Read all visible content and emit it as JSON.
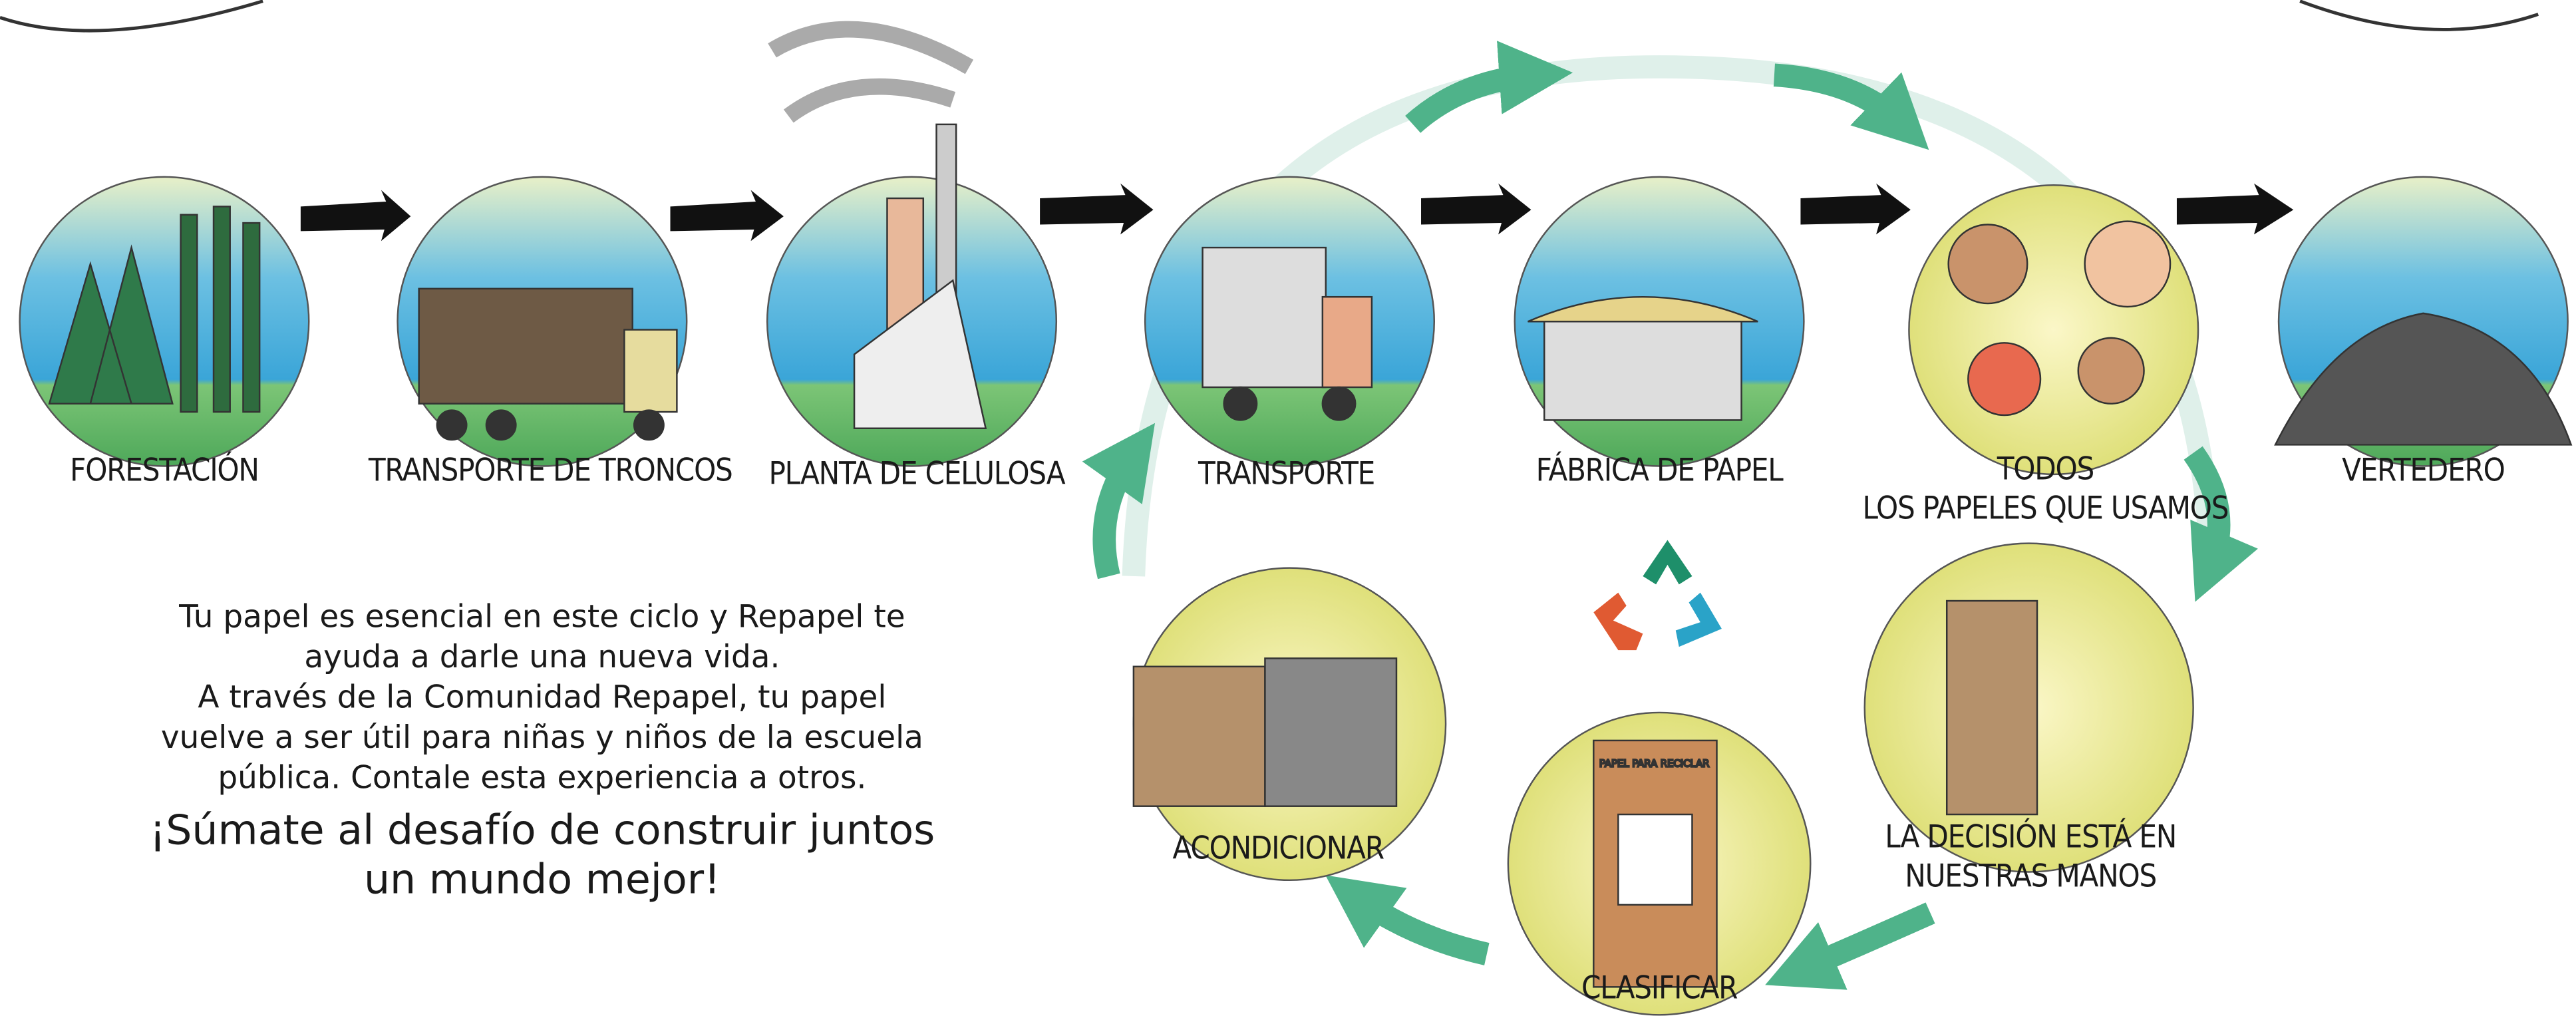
{
  "nodes": [
    {
      "lines": [
        "FORESTACIÓN"
      ]
    },
    {
      "lines": [
        "TRANSPORTE DE TRONCOS"
      ]
    },
    {
      "lines": [
        "PLANTA DE CELULOSA"
      ]
    },
    {
      "lines": [
        "TRANSPORTE"
      ]
    },
    {
      "lines": [
        "FÁBRICA DE PAPEL"
      ]
    },
    {
      "lines": [
        "TODOS",
        "LOS PAPELES QUE USAMOS"
      ]
    },
    {
      "lines": [
        "VERTEDERO"
      ]
    },
    {
      "lines": [
        "LA DECISIÓN ESTÁ EN",
        "NUESTRAS MANOS"
      ]
    },
    {
      "lines": [
        "CLASIFICAR"
      ]
    },
    {
      "lines": [
        "ACONDICIONAR"
      ]
    }
  ],
  "bin_label": "PAPEL PARA RECICLAR",
  "paragraph": {
    "lines": [
      "Tu papel es esencial en este ciclo y Repapel te",
      "ayuda a darle una nueva vida.",
      "A través de la Comunidad Repapel, tu papel",
      "vuelve a ser útil para niñas y niños de la escuela",
      "pública. Contale esta experiencia a otros."
    ]
  },
  "slogan": {
    "lines": [
      "¡Súmate al desafío de construir juntos",
      "un mundo mejor!"
    ]
  }
}
